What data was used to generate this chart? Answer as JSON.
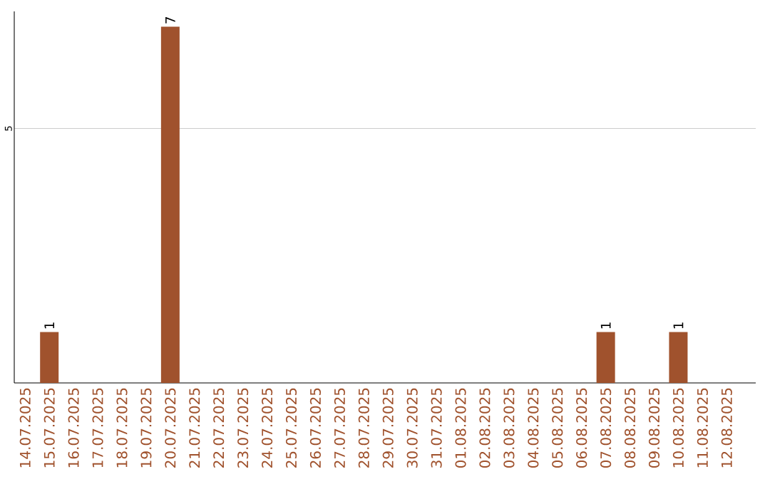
{
  "chart_data": {
    "type": "bar",
    "categories": [
      "14.07.2025",
      "15.07.2025",
      "16.07.2025",
      "17.07.2025",
      "18.07.2025",
      "19.07.2025",
      "20.07.2025",
      "21.07.2025",
      "22.07.2025",
      "23.07.2025",
      "24.07.2025",
      "25.07.2025",
      "26.07.2025",
      "27.07.2025",
      "28.07.2025",
      "29.07.2025",
      "30.07.2025",
      "31.07.2025",
      "01.08.2025",
      "02.08.2025",
      "03.08.2025",
      "04.08.2025",
      "05.08.2025",
      "06.08.2025",
      "07.08.2025",
      "08.08.2025",
      "09.08.2025",
      "10.08.2025",
      "11.08.2025",
      "12.08.2025"
    ],
    "values": [
      0,
      1,
      0,
      0,
      0,
      0,
      7,
      0,
      0,
      0,
      0,
      0,
      0,
      0,
      0,
      0,
      0,
      0,
      0,
      0,
      0,
      0,
      0,
      0,
      1,
      0,
      0,
      1,
      0,
      0
    ],
    "value_labels": [
      null,
      "1",
      null,
      null,
      null,
      null,
      "7",
      null,
      null,
      null,
      null,
      null,
      null,
      null,
      null,
      null,
      null,
      null,
      null,
      null,
      null,
      null,
      null,
      null,
      "1",
      null,
      null,
      "1",
      null,
      null
    ],
    "color": "#a0522d",
    "ylim": [
      0,
      7.3
    ],
    "yticks": [
      5
    ],
    "grid": "y"
  }
}
